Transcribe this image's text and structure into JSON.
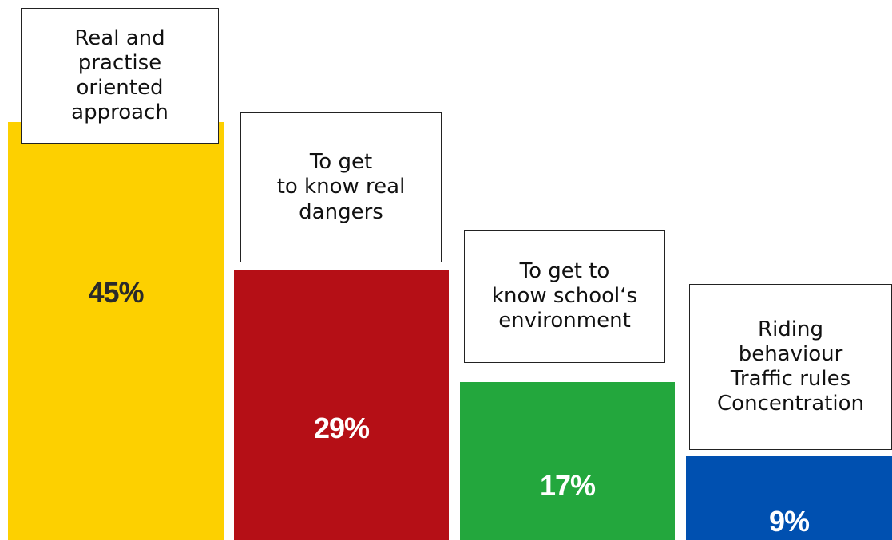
{
  "chart_data": {
    "type": "bar",
    "categories": [
      "Real and\npractise\noriented\napproach",
      "To get\nto know real\ndangers",
      "To get to\nknow school‘s\nenvironment",
      "Riding\nbehaviour\nTraffic rules\nConcentration"
    ],
    "values": [
      45,
      29,
      17,
      9
    ],
    "value_labels": [
      "45%",
      "29%",
      "17%",
      "9%"
    ],
    "colors": [
      "#fdd000",
      "#b50f16",
      "#23a73d",
      "#0050b0"
    ],
    "label_colors": [
      "#2a2a2a",
      "#ffffff",
      "#ffffff",
      "#ffffff"
    ],
    "title": "",
    "xlabel": "",
    "ylabel": "",
    "ylim": [
      0,
      45
    ],
    "grid": false
  }
}
